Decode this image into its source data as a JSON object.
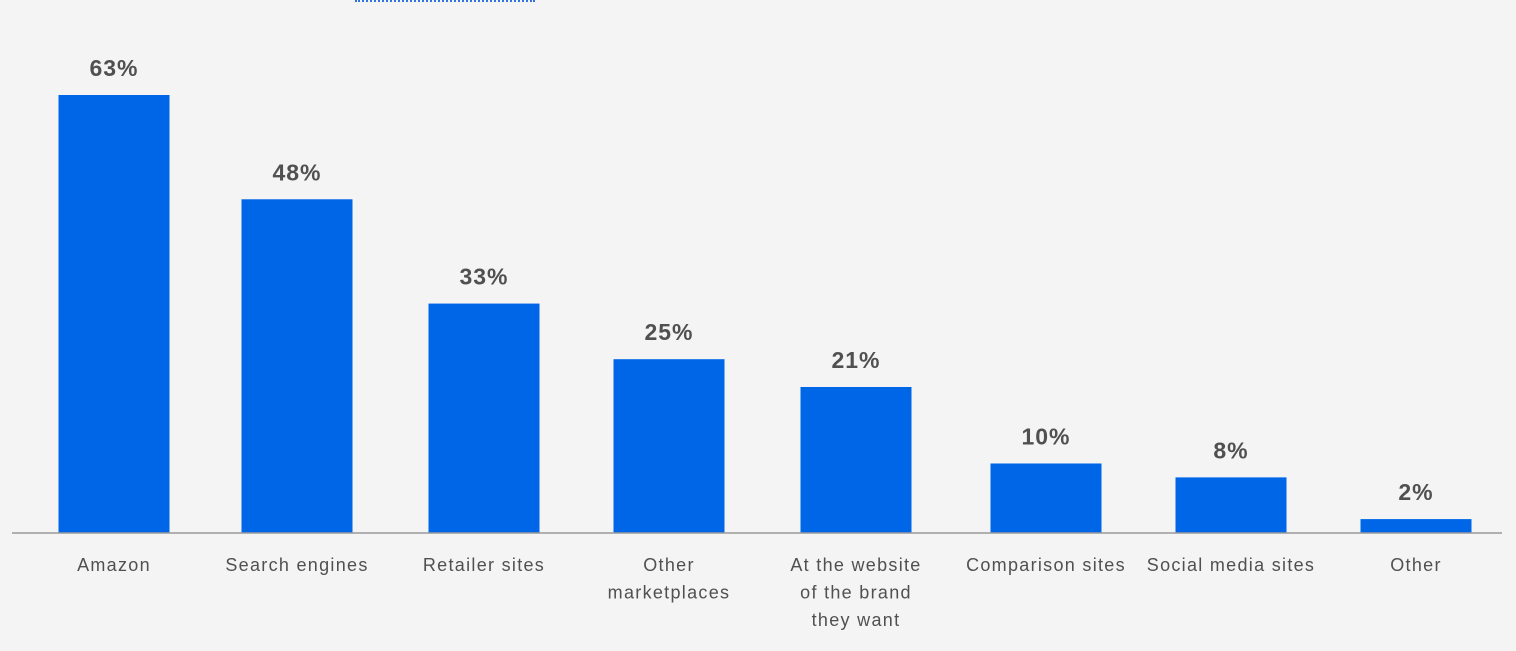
{
  "chart_data": {
    "type": "bar",
    "categories": [
      "Amazon",
      "Search engines",
      "Retailer sites",
      "Other marketplaces",
      "At the website of the brand they want",
      "Comparison sites",
      "Social media sites",
      "Other"
    ],
    "category_lines": [
      [
        "Amazon"
      ],
      [
        "Search engines"
      ],
      [
        "Retailer sites"
      ],
      [
        "Other",
        "marketplaces"
      ],
      [
        "At the website",
        "of the brand",
        "they want"
      ],
      [
        "Comparison sites"
      ],
      [
        "Social media sites"
      ],
      [
        "Other"
      ]
    ],
    "values": [
      63,
      48,
      33,
      25,
      21,
      10,
      8,
      2
    ],
    "value_labels": [
      "63%",
      "48%",
      "33%",
      "25%",
      "21%",
      "10%",
      "8%",
      "2%"
    ],
    "unit": "%",
    "ylim": [
      0,
      63
    ],
    "grid": false,
    "legend": "none",
    "colors": {
      "bar": "#0066e8",
      "axis": "#9a9a9a",
      "label": "#505050",
      "background": "#f4f4f4"
    }
  }
}
